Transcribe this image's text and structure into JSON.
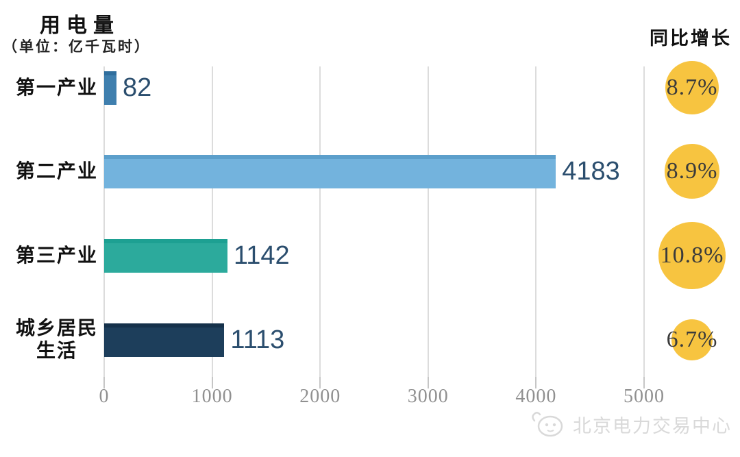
{
  "header": {
    "title": "用电量",
    "subtitle": "（单位：亿千瓦时）",
    "growth_header": "同比增长"
  },
  "chart_data": {
    "type": "bar",
    "orientation": "horizontal",
    "title": "用电量",
    "unit_note": "（单位：亿千瓦时）",
    "categories": [
      "第一产业",
      "第二产业",
      "第三产业",
      "城乡居民生活"
    ],
    "category_lines": [
      [
        "第一产业"
      ],
      [
        "第二产业"
      ],
      [
        "第三产业"
      ],
      [
        "城乡居民",
        "生活"
      ]
    ],
    "values": [
      82,
      4183,
      1142,
      1113
    ],
    "value_labels": [
      "82",
      "4183",
      "1142",
      "1113"
    ],
    "growth_series_name": "同比增长",
    "growth_values": [
      8.7,
      8.9,
      10.8,
      6.7
    ],
    "growth_labels": [
      "8.7%",
      "8.9%",
      "10.8%",
      "6.7%"
    ],
    "xlim": [
      0,
      5000
    ],
    "x_ticks": [
      0,
      1000,
      2000,
      3000,
      4000,
      5000
    ],
    "x_tick_labels": [
      "0",
      "1000",
      "2000",
      "3000",
      "4000",
      "5000"
    ],
    "grid": "vertical-only",
    "legend": "none",
    "colors": {
      "bars": [
        {
          "fill": "#3f7fae",
          "top": "#2f6e9d"
        },
        {
          "fill": "#73b3dd",
          "top": "#5c9fcb"
        },
        {
          "fill": "#2caa9c",
          "top": "#1da092"
        },
        {
          "fill": "#1d3e5b",
          "top": "#15314a"
        }
      ],
      "growth_circle": "#f7c440",
      "value_text": "#2b4e6e",
      "axis_text": "#909090"
    }
  },
  "watermark": {
    "text": "北京电力交易中心"
  }
}
